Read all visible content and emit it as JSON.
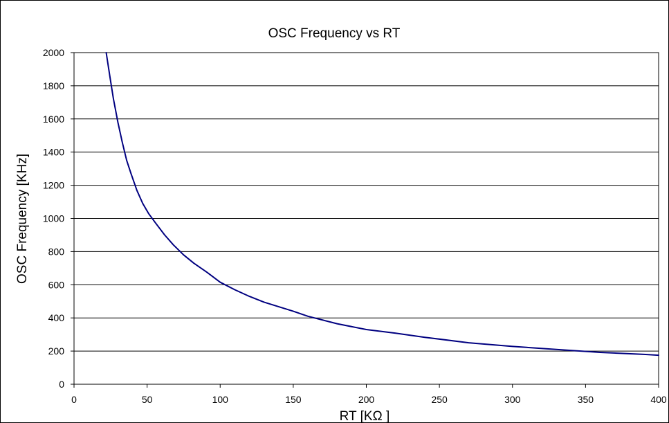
{
  "chart_data": {
    "type": "line",
    "title": "OSC Frequency vs RT",
    "xlabel": "RT [KΩ ]",
    "ylabel": "OSC Frequency [KHz]",
    "xlim": [
      0,
      400
    ],
    "ylim": [
      0,
      2000
    ],
    "x_ticks": [
      0,
      50,
      100,
      150,
      200,
      250,
      300,
      350,
      400
    ],
    "y_ticks": [
      0,
      200,
      400,
      600,
      800,
      1000,
      1200,
      1400,
      1600,
      1800,
      2000
    ],
    "grid": "horizontal",
    "legend": "none",
    "series": [
      {
        "color": "#000080",
        "x": [
          22,
          25,
          27,
          30,
          33,
          36,
          39,
          43,
          47,
          51,
          56,
          62,
          68,
          75,
          82,
          91,
          100,
          110,
          120,
          130,
          150,
          160,
          180,
          200,
          220,
          240,
          270,
          300,
          330,
          360,
          390,
          400
        ],
        "y": [
          2000,
          1830,
          1720,
          1580,
          1460,
          1350,
          1270,
          1170,
          1090,
          1030,
          970,
          900,
          840,
          780,
          730,
          675,
          615,
          570,
          530,
          495,
          440,
          410,
          365,
          330,
          308,
          283,
          250,
          228,
          210,
          192,
          180,
          175
        ]
      }
    ]
  }
}
